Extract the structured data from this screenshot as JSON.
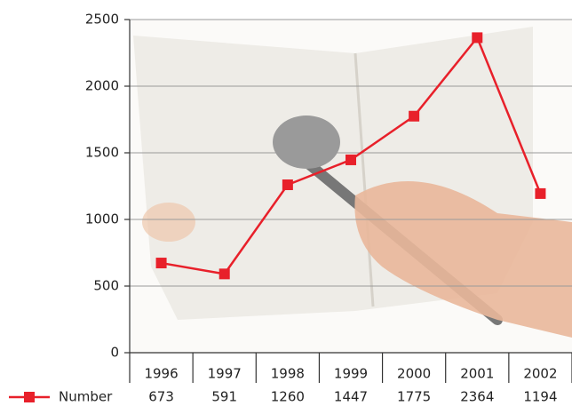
{
  "chart_data": {
    "type": "line",
    "categories": [
      "1996",
      "1997",
      "1998",
      "1999",
      "2000",
      "2001",
      "2002"
    ],
    "series": [
      {
        "name": "Number",
        "color": "#e8202a",
        "values": [
          673,
          591,
          1260,
          1447,
          1775,
          2364,
          1194
        ]
      }
    ],
    "ylim": [
      0,
      2500
    ],
    "yticks": [
      0,
      500,
      1000,
      1500,
      2000,
      2500
    ],
    "grid": true
  }
}
